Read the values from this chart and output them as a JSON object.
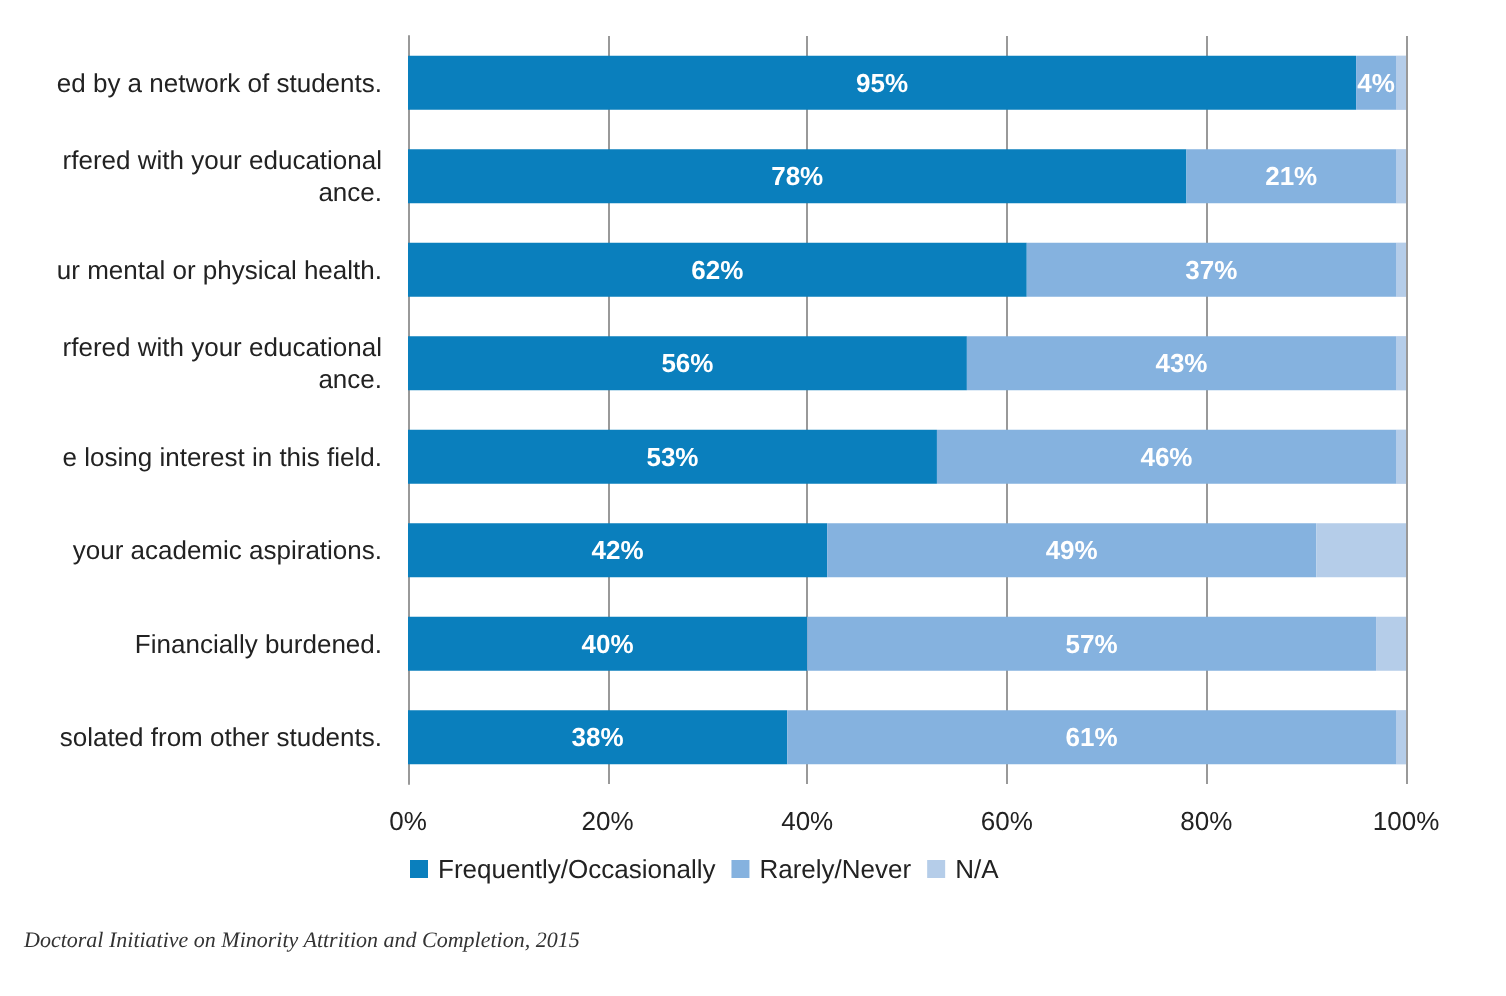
{
  "chart_data": {
    "type": "bar",
    "orientation": "horizontal",
    "stacked": true,
    "categories": [
      "ed by a network of students.",
      "rfered with your educational\nance.",
      "ur mental or physical health.",
      "rfered with your educational\nance.",
      "e losing interest in this field.",
      " your academic aspirations.",
      "Financially burdened.",
      "solated from other students."
    ],
    "series": [
      {
        "name": "Frequently/Occasionally",
        "color": "#0a7fbd",
        "values": [
          95,
          78,
          62,
          56,
          53,
          42,
          40,
          38
        ],
        "value_labels": [
          "95%",
          "78%",
          "62%",
          "56%",
          "53%",
          "42%",
          "40%",
          "38%"
        ]
      },
      {
        "name": "Rarely/Never",
        "color": "#85b2df",
        "values": [
          4,
          21,
          37,
          43,
          46,
          49,
          57,
          61
        ],
        "value_labels": [
          "4%",
          "21%",
          "37%",
          "43%",
          "46%",
          "49%",
          "57%",
          "61%"
        ]
      },
      {
        "name": "N/A",
        "color": "#b5cde9",
        "values": [
          1,
          1,
          1,
          1,
          1,
          9,
          3,
          1
        ]
      }
    ],
    "xlim": [
      0,
      100
    ],
    "xticks": [
      {
        "value": 0,
        "label": "0%"
      },
      {
        "value": 20,
        "label": "20%"
      },
      {
        "value": 40,
        "label": "40%"
      },
      {
        "value": 60,
        "label": "60%"
      },
      {
        "value": 80,
        "label": "80%"
      },
      {
        "value": 100,
        "label": "100%"
      }
    ],
    "grid": "x",
    "legend": "bottom",
    "annotations": [
      "Doctoral Initiative on Minority Attrition and Completion, 2015"
    ]
  }
}
